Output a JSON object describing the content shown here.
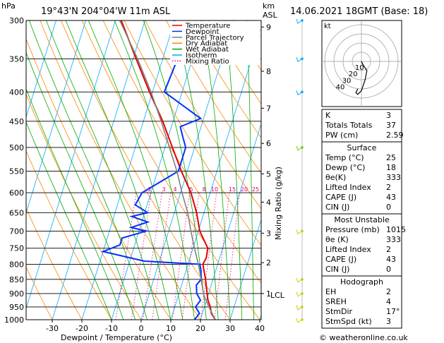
{
  "header": {
    "location": "19°43'N  204°04'W  11m  ASL",
    "datetime": "14.06.2021  18GMT  (Base: 18)",
    "hpa_label": "hPa",
    "km_label": "km",
    "asl_label": "ASL"
  },
  "legend": [
    {
      "name": "Temperature",
      "color": "#e60000"
    },
    {
      "name": "Dewpoint",
      "color": "#0030ff"
    },
    {
      "name": "Parcel Trajectory",
      "color": "#808080"
    },
    {
      "name": "Dry Adiabat",
      "color": "#ff8800"
    },
    {
      "name": "Wet Adiabat",
      "color": "#00aa00"
    },
    {
      "name": "Isotherm",
      "color": "#00aaff"
    },
    {
      "name": "Mixing Ratio",
      "color": "#e0007a"
    }
  ],
  "chart_data": {
    "type": "line",
    "title": "",
    "xlabel": "Dewpoint / Temperature (°C)",
    "ylabel": "hPa",
    "y2label": "Mixing Ratio (g/kg)",
    "xlim": [
      -35,
      40
    ],
    "ylim": [
      1000,
      300
    ],
    "y_scale": "log",
    "x_ticks": [
      -30,
      -20,
      -10,
      0,
      10,
      20,
      30,
      40
    ],
    "pressure_levels": [
      300,
      350,
      400,
      450,
      500,
      550,
      600,
      650,
      700,
      750,
      800,
      850,
      900,
      950,
      1000
    ],
    "km_ticks": [
      {
        "label": "9",
        "p": 308
      },
      {
        "label": "8",
        "p": 368
      },
      {
        "label": "7",
        "p": 427
      },
      {
        "label": "6",
        "p": 492
      },
      {
        "label": "5",
        "p": 556
      },
      {
        "label": "4",
        "p": 623
      },
      {
        "label": "3",
        "p": 706
      },
      {
        "label": "2",
        "p": 795
      },
      {
        "label": "1",
        "p": 900
      }
    ],
    "lcl_label": "LCL",
    "lcl_p": 905,
    "mixing_ratio_labels": [
      "2",
      "3",
      "4",
      "5",
      "8",
      "10",
      "15",
      "20",
      "25"
    ],
    "mixing_ratio_values": [
      2,
      3,
      4,
      5,
      8,
      10,
      15,
      20,
      25
    ],
    "grid": true,
    "series": [
      {
        "name": "Temperature",
        "color": "#e60000",
        "p": [
          1000,
          975,
          950,
          925,
          900,
          850,
          800,
          780,
          750,
          700,
          650,
          600,
          550,
          500,
          450,
          400,
          350,
          300
        ],
        "t": [
          25,
          23,
          22,
          20.5,
          19.5,
          17.5,
          15,
          15.5,
          15,
          10.5,
          7.5,
          3.5,
          -2,
          -7.5,
          -13.5,
          -21,
          -29,
          -38
        ]
      },
      {
        "name": "Dewpoint",
        "color": "#0030ff",
        "p": [
          1000,
          975,
          950,
          925,
          900,
          870,
          850,
          820,
          800,
          790,
          780,
          760,
          740,
          720,
          700,
          690,
          675,
          660,
          650,
          630,
          600,
          550,
          500,
          480,
          460,
          445,
          400,
          350,
          300
        ],
        "t": [
          18,
          19,
          17,
          18,
          16,
          15,
          16,
          15,
          14,
          -5,
          -10,
          -20,
          -15,
          -15,
          -7.5,
          -13,
          -8,
          -14,
          -9,
          -14,
          -13,
          -3,
          -3,
          -5,
          -7,
          -1,
          -16,
          -15,
          -20
        ]
      },
      {
        "name": "Parcel Trajectory",
        "color": "#808080",
        "p": [
          1000,
          950,
          905,
          850,
          800,
          750,
          700,
          650,
          600,
          550,
          500,
          450,
          400,
          350,
          300
        ],
        "t": [
          25,
          21.5,
          18.5,
          16,
          13.5,
          10.5,
          7.5,
          4.5,
          0.5,
          -3.5,
          -8.5,
          -14,
          -20.5,
          -28.5,
          -38.5
        ]
      }
    ]
  },
  "wind_barbs_pressures": [
    1000,
    950,
    900,
    850,
    700,
    500,
    400,
    350,
    300
  ],
  "hodograph": {
    "label": "kt",
    "ring_labels": [
      "10",
      "20",
      "30",
      "40"
    ],
    "trace_u": [
      0,
      1,
      3,
      2,
      0,
      -2,
      -3,
      -2
    ],
    "trace_v": [
      0,
      -2,
      -5,
      -10,
      -16,
      -18,
      -17,
      -15
    ]
  },
  "indices": {
    "general": [
      {
        "label": "K",
        "value": "3"
      },
      {
        "label": "Totals Totals",
        "value": "37"
      },
      {
        "label": "PW (cm)",
        "value": "2.59"
      }
    ],
    "surface_title": "Surface",
    "surface": [
      {
        "label": "Temp (°C)",
        "value": "25"
      },
      {
        "label": "Dewp (°C)",
        "value": "18"
      },
      {
        "label": "θe(K)",
        "value": "333"
      },
      {
        "label": "Lifted Index",
        "value": "2"
      },
      {
        "label": "CAPE (J)",
        "value": "43"
      },
      {
        "label": "CIN (J)",
        "value": "0"
      }
    ],
    "unstable_title": "Most Unstable",
    "unstable": [
      {
        "label": "Pressure (mb)",
        "value": "1015"
      },
      {
        "label": "θe (K)",
        "value": "333"
      },
      {
        "label": "Lifted Index",
        "value": "2"
      },
      {
        "label": "CAPE (J)",
        "value": "43"
      },
      {
        "label": "CIN (J)",
        "value": "0"
      }
    ],
    "hodo_title": "Hodograph",
    "hodo": [
      {
        "label": "EH",
        "value": "2"
      },
      {
        "label": "SREH",
        "value": "4"
      },
      {
        "label": "StmDir",
        "value": "17°"
      },
      {
        "label": "StmSpd (kt)",
        "value": "3"
      }
    ]
  },
  "footer": {
    "copyright": "© weatheronline.co.uk"
  }
}
